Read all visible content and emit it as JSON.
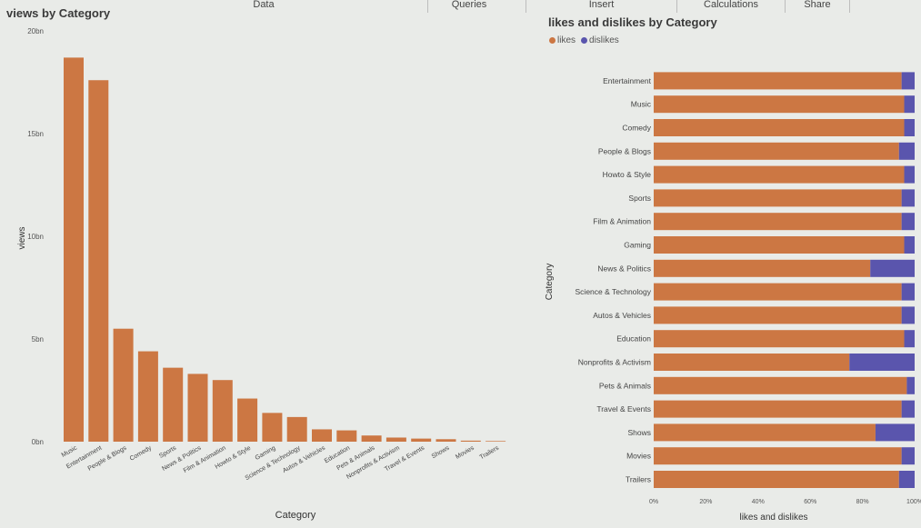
{
  "ribbon": {
    "tabs": [
      "Data",
      "Queries",
      "Insert",
      "Calculations",
      "Share"
    ]
  },
  "colors": {
    "likes": "#cc7743",
    "dislikes": "#5a55ad"
  },
  "chart_data": [
    {
      "type": "bar",
      "title": "views by Category",
      "xlabel": "Category",
      "ylabel": "views",
      "ylim": [
        0,
        20
      ],
      "yticks": [
        "0bn",
        "5bn",
        "10bn",
        "15bn",
        "20bn"
      ],
      "unit": "bn",
      "grid": false,
      "categories": [
        "Music",
        "Entertainment",
        "People & Blogs",
        "Comedy",
        "Sports",
        "News & Politics",
        "Film & Animation",
        "Howto & Style",
        "Gaming",
        "Science & Technology",
        "Autos & Vehicles",
        "Education",
        "Pets & Animals",
        "Nonprofits & Activism",
        "Travel & Events",
        "Shows",
        "Movies",
        "Trailers"
      ],
      "values": [
        18.7,
        17.6,
        5.5,
        4.4,
        3.6,
        3.3,
        3.0,
        2.1,
        1.4,
        1.2,
        0.6,
        0.55,
        0.3,
        0.2,
        0.15,
        0.12,
        0.05,
        0.03
      ]
    },
    {
      "type": "bar",
      "orientation": "horizontal",
      "stacked": "100%",
      "title": "likes and dislikes by Category",
      "xlabel": "likes and dislikes",
      "ylabel": "Category",
      "xticks": [
        "0%",
        "20%",
        "40%",
        "60%",
        "80%",
        "100%"
      ],
      "legend": "top-left",
      "categories": [
        "Entertainment",
        "Music",
        "Comedy",
        "People & Blogs",
        "Howto & Style",
        "Sports",
        "Film & Animation",
        "Gaming",
        "News & Politics",
        "Science & Technology",
        "Autos & Vehicles",
        "Education",
        "Nonprofits & Activism",
        "Pets & Animals",
        "Travel & Events",
        "Shows",
        "Movies",
        "Trailers"
      ],
      "series": [
        {
          "name": "likes",
          "values": [
            95,
            96,
            96,
            94,
            96,
            95,
            95,
            96,
            83,
            95,
            95,
            96,
            75,
            97,
            95,
            85,
            95,
            94
          ]
        },
        {
          "name": "dislikes",
          "values": [
            5,
            4,
            4,
            6,
            4,
            5,
            5,
            4,
            17,
            5,
            5,
            4,
            25,
            3,
            5,
            15,
            5,
            6
          ]
        }
      ]
    }
  ]
}
